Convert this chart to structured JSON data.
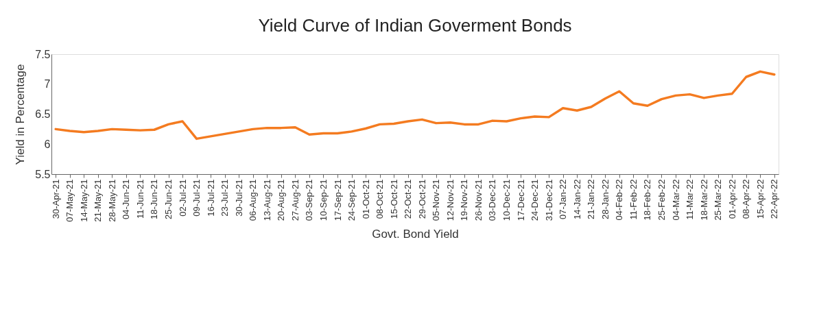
{
  "chart_data": {
    "type": "line",
    "title": "Yield Curve of Indian Goverment Bonds",
    "xlabel": "Govt. Bond Yield",
    "ylabel": "Yield in Percentage",
    "categories": [
      "30-Apr-21",
      "07-May-21",
      "14-May-21",
      "21-May-21",
      "28-May-21",
      "04-Jun-21",
      "11-Jun-21",
      "18-Jun-21",
      "25-Jun-21",
      "02-Jul-21",
      "09-Jul-21",
      "16-Jul-21",
      "23-Jul-21",
      "30-Jul-21",
      "06-Aug-21",
      "13-Aug-21",
      "20-Aug-21",
      "27-Aug-21",
      "03-Sep-21",
      "10-Sep-21",
      "17-Sep-21",
      "24-Sep-21",
      "01-Oct-21",
      "08-Oct-21",
      "15-Oct-21",
      "22-Oct-21",
      "29-Oct-21",
      "05-Nov-21",
      "12-Nov-21",
      "19-Nov-21",
      "26-Nov-21",
      "03-Dec-21",
      "10-Dec-21",
      "17-Dec-21",
      "24-Dec-21",
      "31-Dec-21",
      "07-Jan-22",
      "14-Jan-22",
      "21-Jan-22",
      "28-Jan-22",
      "04-Feb-22",
      "11-Feb-22",
      "18-Feb-22",
      "25-Feb-22",
      "04-Mar-22",
      "11-Mar-22",
      "18-Mar-22",
      "25-Mar-22",
      "01-Apr-22",
      "08-Apr-22",
      "15-Apr-22",
      "22-Apr-22"
    ],
    "series": [
      {
        "color": "#f47b20",
        "values": [
          6.25,
          6.22,
          6.2,
          6.22,
          6.25,
          6.24,
          6.23,
          6.24,
          6.33,
          6.38,
          6.09,
          6.13,
          6.17,
          6.21,
          6.25,
          6.27,
          6.27,
          6.28,
          6.16,
          6.18,
          6.18,
          6.21,
          6.26,
          6.33,
          6.34,
          6.38,
          6.41,
          6.35,
          6.36,
          6.33,
          6.33,
          6.39,
          6.38,
          6.43,
          6.46,
          6.45,
          6.6,
          6.56,
          6.62,
          6.76,
          6.88,
          6.68,
          6.64,
          6.75,
          6.81,
          6.83,
          6.77,
          6.81,
          6.84,
          7.12,
          7.21,
          7.16
        ]
      }
    ],
    "ylim": [
      5.5,
      7.5
    ],
    "yticks": [
      5.5,
      6,
      6.5,
      7,
      7.5
    ],
    "grid": false,
    "legend": false,
    "marker": "none",
    "line_style": "solid"
  }
}
